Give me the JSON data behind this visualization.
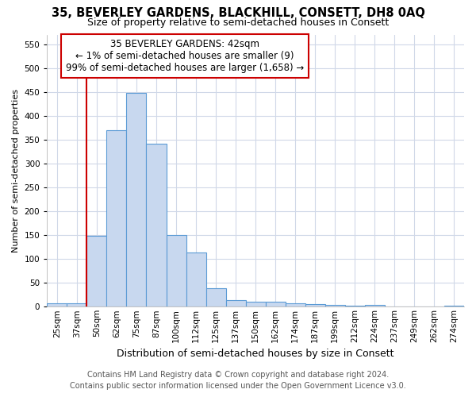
{
  "title": "35, BEVERLEY GARDENS, BLACKHILL, CONSETT, DH8 0AQ",
  "subtitle": "Size of property relative to semi-detached houses in Consett",
  "xlabel": "Distribution of semi-detached houses by size in Consett",
  "ylabel": "Number of semi-detached properties",
  "footer1": "Contains HM Land Registry data © Crown copyright and database right 2024.",
  "footer2": "Contains public sector information licensed under the Open Government Licence v3.0.",
  "categories": [
    "25sqm",
    "37sqm",
    "50sqm",
    "62sqm",
    "75sqm",
    "87sqm",
    "100sqm",
    "112sqm",
    "125sqm",
    "137sqm",
    "150sqm",
    "162sqm",
    "174sqm",
    "187sqm",
    "199sqm",
    "212sqm",
    "224sqm",
    "237sqm",
    "249sqm",
    "262sqm",
    "274sqm"
  ],
  "values": [
    7,
    7,
    148,
    370,
    448,
    342,
    150,
    114,
    38,
    13,
    11,
    10,
    7,
    6,
    4,
    2,
    4,
    0,
    0,
    0,
    2
  ],
  "bar_color": "#c8d8ef",
  "bar_edge_color": "#5b9bd5",
  "vline_color": "#cc0000",
  "annotation_line1": "35 BEVERLEY GARDENS: 42sqm",
  "annotation_line2": "← 1% of semi-detached houses are smaller (9)",
  "annotation_line3": "99% of semi-detached houses are larger (1,658) →",
  "annotation_box_edge": "#cc0000",
  "ylim_max": 570,
  "yticks": [
    0,
    50,
    100,
    150,
    200,
    250,
    300,
    350,
    400,
    450,
    500,
    550
  ],
  "bg_color": "#ffffff",
  "grid_color": "#d0d8e8",
  "title_fontsize": 10.5,
  "subtitle_fontsize": 9,
  "ylabel_fontsize": 8,
  "xlabel_fontsize": 9,
  "tick_fontsize": 7.5,
  "annot_fontsize": 8.5,
  "footer_fontsize": 7
}
